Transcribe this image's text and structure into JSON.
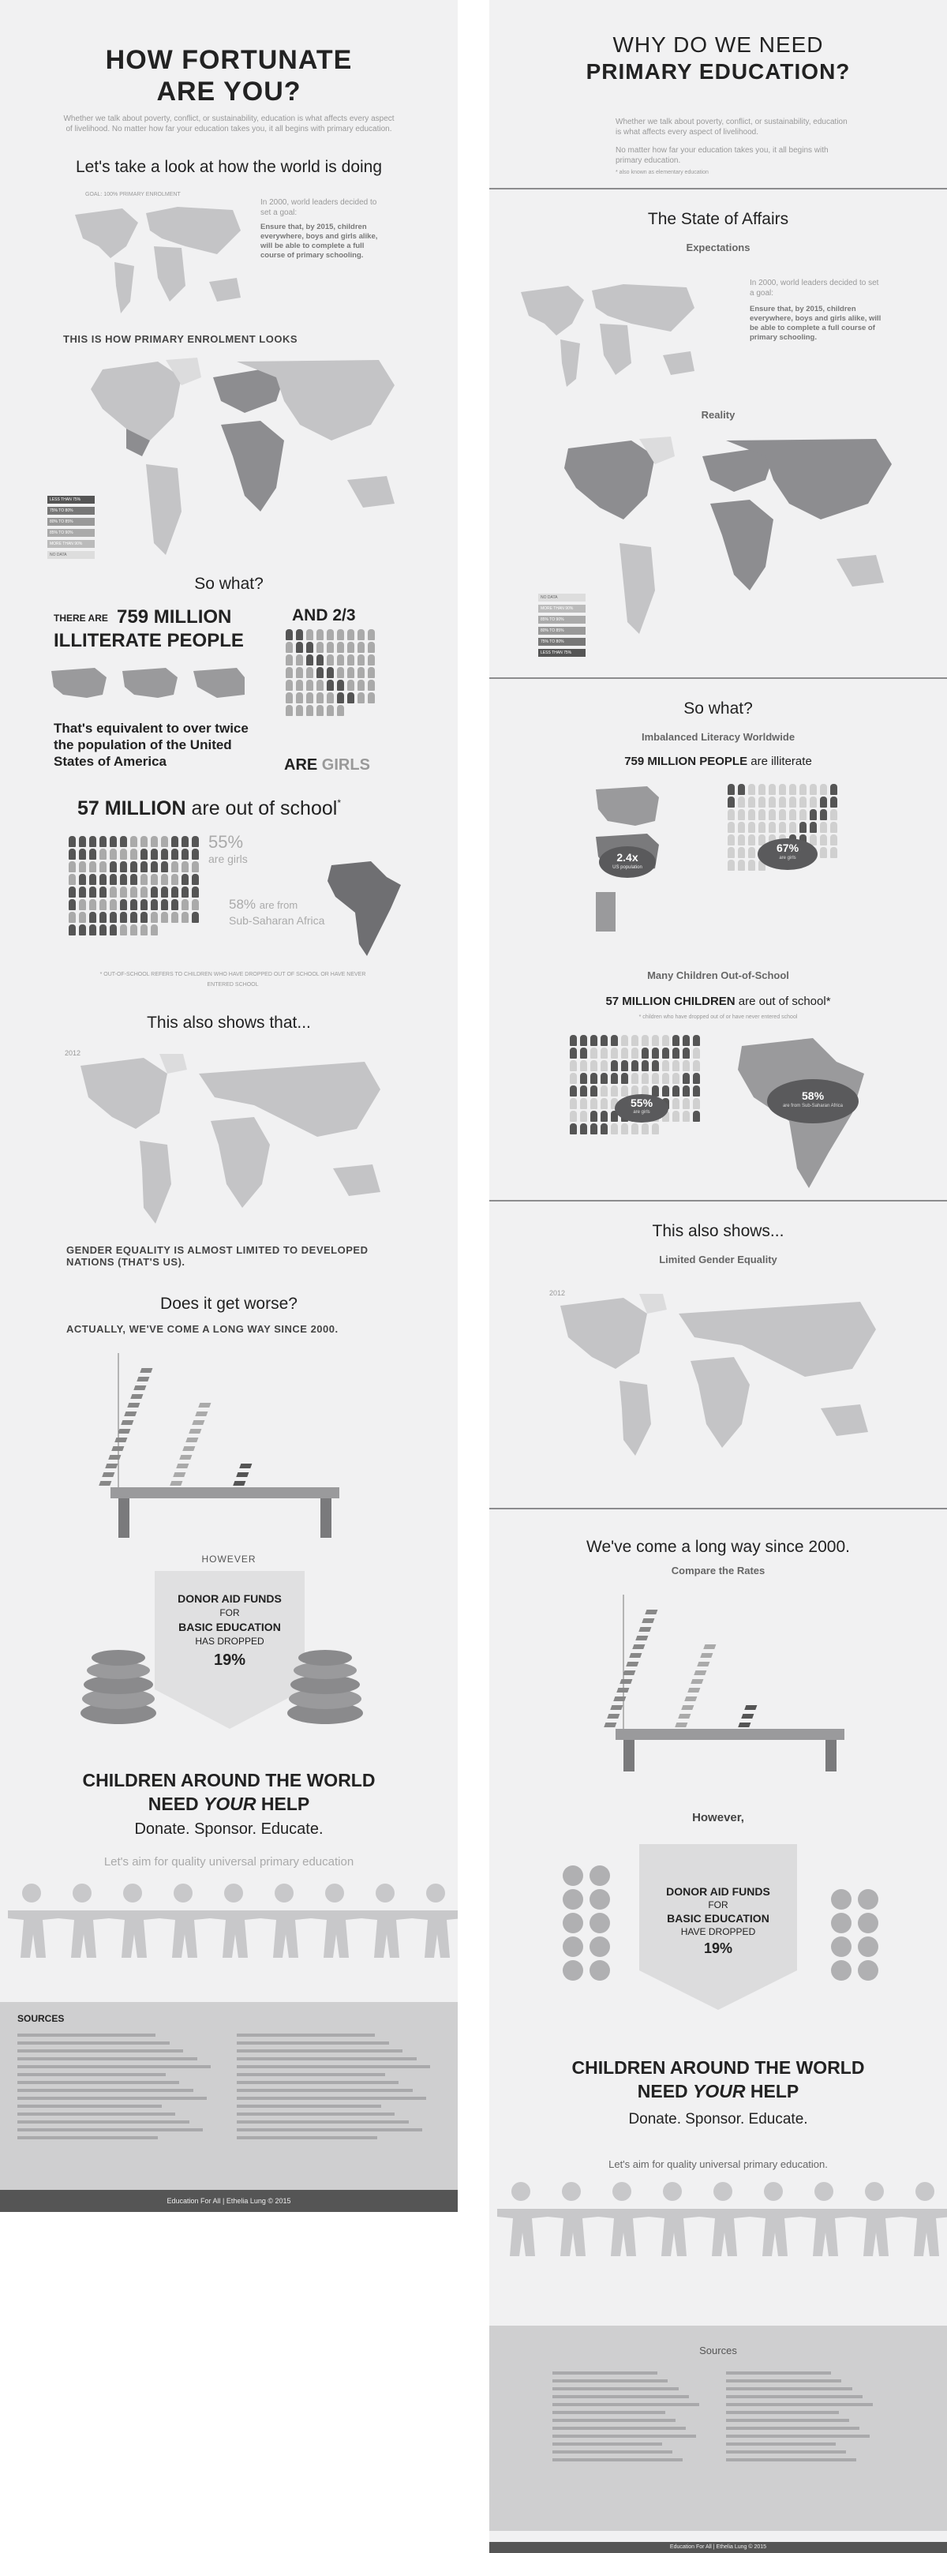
{
  "left": {
    "title": "HOW FORTUNATE ARE YOU?",
    "intro": "Whether we talk about poverty, conflict, or sustainability, education is what affects every aspect of livelihood. No matter how far your education takes you, it all begins with primary education.",
    "look_heading": "Let's take a look at how the world is doing",
    "goal_label": "GOAL: 100% PRIMARY ENROLMENT",
    "goal_text": "In 2000, world leaders decided to set a goal:",
    "goal_bold": "Ensure that, by 2015, children everywhere, boys and girls alike, will be able to complete a full course of primary schooling.",
    "enrolment_heading": "THIS IS HOW PRIMARY ENROLMENT LOOKS",
    "legend": [
      "LESS THAN 75%",
      "75% TO 80%",
      "80% TO 85%",
      "85% TO 90%",
      "MORE THAN 90%",
      "NO DATA"
    ],
    "so_what": "So what?",
    "there_are": "THERE ARE",
    "illiterate_num": "759 MILLION",
    "illiterate_label": "ILLITERATE PEOPLE",
    "and_23": "AND 2/3",
    "equivalent": "That's equivalent to over twice the population of the United States of America",
    "are_girls_prefix": "ARE",
    "are_girls": "GIRLS",
    "out_of_school_num": "57 MILLION",
    "out_of_school_text": "are out of school",
    "pct_girls": "55%",
    "pct_girls_label": "are girls",
    "pct_africa": "58%",
    "pct_africa_label": "are from",
    "africa_label": "Sub-Saharan Africa",
    "footnote": "* OUT-OF-SCHOOL REFERS TO CHILDREN WHO HAVE DROPPED OUT OF SCHOOL OR HAVE NEVER ENTERED SCHOOL",
    "also_shows": "This also shows that...",
    "year": "2012",
    "gender_text": "GENDER EQUALITY IS ALMOST LIMITED TO DEVELOPED NATIONS (THAT'S US).",
    "worse": "Does it get worse?",
    "long_way": "ACTUALLY, WE'VE COME A LONG WAY SINCE 2000.",
    "however": "HOWEVER",
    "donor_1": "DONOR AID FUNDS",
    "donor_2": "FOR",
    "donor_3": "BASIC EDUCATION",
    "donor_4": "HAS DROPPED",
    "donor_pct": "19%",
    "cta_1": "CHILDREN AROUND THE WORLD",
    "cta_2a": "NEED",
    "cta_2b": "YOUR",
    "cta_2c": "HELP",
    "donate": "Donate. Sponsor. Educate.",
    "aim": "Let's aim for quality universal primary education",
    "sources_title": "SOURCES",
    "footer": "Education For All | Ethelia Lung © 2015"
  },
  "right": {
    "title_1": "WHY DO WE NEED",
    "title_2": "PRIMARY EDUCATION?",
    "intro_1": "Whether we talk about poverty, conflict, or sustainability, education is what affects every aspect of livelihood.",
    "intro_2": "No matter how far your education takes you, it all begins with primary education.",
    "intro_note": "* also known as elementary education",
    "state": "The State of Affairs",
    "expectations": "Expectations",
    "goal_text": "In 2000, world leaders decided to set a goal:",
    "goal_bold": "Ensure that, by 2015, children everywhere, boys and girls alike, will be able to complete a full course of primary schooling.",
    "reality": "Reality",
    "legend": [
      "NO DATA",
      "MORE THAN 90%",
      "85% TO 90%",
      "80% TO 85%",
      "75% TO 80%",
      "LESS THAN 75%"
    ],
    "so_what": "So what?",
    "imbalanced": "Imbalanced Literacy Worldwide",
    "illiterate_bold": "759 MILLION PEOPLE",
    "illiterate_rest": "are illiterate",
    "us_pct": "2.4",
    "us_label": "US population",
    "girls_pct": "67",
    "girls_label": "are girls",
    "many_children": "Many Children Out-of-School",
    "children_bold": "57 MILLION CHILDREN",
    "children_rest": "are out of school*",
    "children_note": "* children who have dropped out of or have never entered school",
    "girls55": "55",
    "girls55_label": "are girls",
    "africa58": "58",
    "africa58_label": "are from Sub-Saharan Africa",
    "also_shows": "This also shows...",
    "limited_gender": "Limited Gender Equality",
    "year": "2012",
    "long_way": "We've come a long way since 2000.",
    "compare": "Compare the Rates",
    "however": "However,",
    "donor_1": "DONOR AID FUNDS",
    "donor_2": "FOR",
    "donor_3": "BASIC EDUCATION",
    "donor_4": "HAVE DROPPED",
    "donor_pct": "19%",
    "cta_1": "CHILDREN AROUND THE WORLD",
    "cta_2a": "NEED",
    "cta_2b": "YOUR",
    "cta_2c": "HELP",
    "donate": "Donate. Sponsor. Educate.",
    "aim": "Let's aim for quality universal primary education.",
    "sources_title": "Sources",
    "footer": "Education For All | Ethelia Lung © 2015"
  },
  "colors": {
    "panel": "#f1f1f2",
    "dark": "#555555",
    "mid": "#8d8d90",
    "light": "#c4c4c6",
    "rule": "#8c8c8e"
  }
}
